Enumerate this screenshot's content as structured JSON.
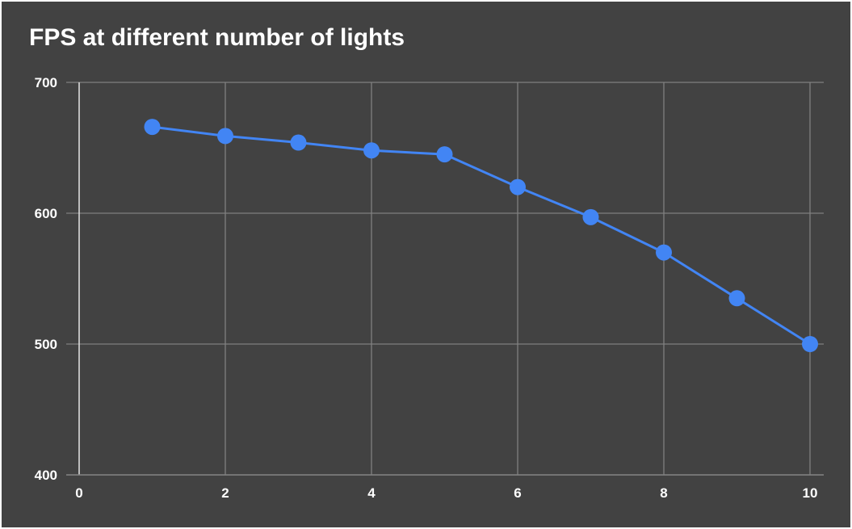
{
  "chart_data": {
    "type": "line",
    "title": "FPS at different number of lights",
    "xlabel": "",
    "ylabel": "",
    "x": [
      1,
      2,
      3,
      4,
      5,
      6,
      7,
      8,
      9,
      10
    ],
    "series": [
      {
        "values": [
          666,
          659,
          654,
          648,
          645,
          620,
          597,
          570,
          535,
          500
        ]
      }
    ],
    "xlim": [
      0,
      10
    ],
    "ylim": [
      400,
      700
    ],
    "x_ticks": [
      "0",
      "2",
      "4",
      "6",
      "8",
      "10"
    ],
    "y_ticks": [
      "400",
      "500",
      "600",
      "700"
    ],
    "grid": true,
    "legend": "none",
    "colors": {
      "background": "#424242",
      "line": "#4285f4",
      "grid": "#808080",
      "text": "#ffffff"
    }
  }
}
